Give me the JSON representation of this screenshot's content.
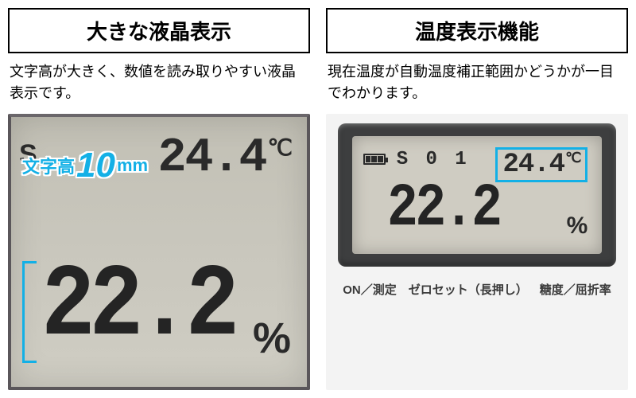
{
  "left": {
    "title": "大きな液晶表示",
    "desc": "文字高が大きく、数値を読み取りやすい液晶表示です。",
    "lcd": {
      "s_label": "S",
      "top_value": "24.4",
      "top_unit": "℃",
      "main_value": "22.2",
      "main_unit": "%"
    },
    "overlay": {
      "prefix": "文字高",
      "value": "10",
      "unit": "mm",
      "bracket_color": "#13b0e6",
      "text_color": "#13b0e6"
    }
  },
  "right": {
    "title": "温度表示機能",
    "desc": "現在温度が自動温度補正範囲かどうかが一目でわかります。",
    "lcd": {
      "s_label": "S 0 1",
      "temp_value": "24.4",
      "temp_unit": "℃",
      "main_value": "22.2",
      "main_unit": "%",
      "highlight_color": "#13b0e6",
      "battery_bars": 3
    },
    "buttons": {
      "b1": "ON／測定",
      "b2": "ゼロセット（長押し）",
      "b3": "糖度／屈折率"
    }
  },
  "colors": {
    "lcd_bg": "#cfccc2",
    "lcd_fg": "#2a2a2a",
    "bezel": "#3d3e3f",
    "device_body": "#f3f3f3",
    "accent": "#13b0e6"
  }
}
